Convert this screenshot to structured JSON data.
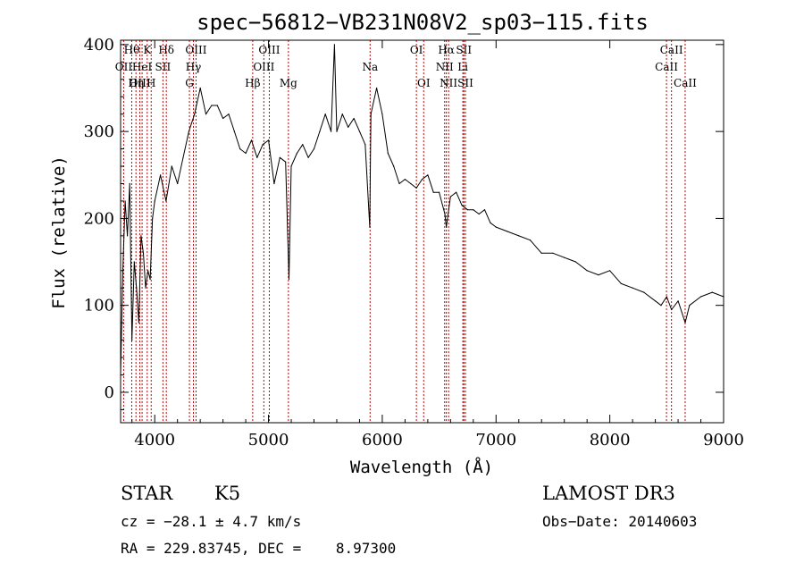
{
  "chart_data": {
    "type": "line",
    "title": "spec−56812−VB231N08V2_sp03−115.fits",
    "xlabel": "Wavelength (Å)",
    "ylabel": "Flux (relative)",
    "xlim": [
      3700,
      9000
    ],
    "ylim": [
      -35,
      405
    ],
    "xticks": [
      4000,
      5000,
      6000,
      7000,
      8000,
      9000
    ],
    "yticks": [
      0,
      100,
      200,
      300,
      400
    ],
    "series": [
      {
        "name": "flux",
        "x": [
          3700,
          3720,
          3740,
          3760,
          3780,
          3800,
          3820,
          3840,
          3860,
          3880,
          3900,
          3920,
          3940,
          3960,
          3980,
          4000,
          4050,
          4100,
          4150,
          4200,
          4250,
          4300,
          4350,
          4400,
          4450,
          4500,
          4550,
          4600,
          4650,
          4700,
          4750,
          4800,
          4850,
          4900,
          4950,
          5000,
          5050,
          5100,
          5150,
          5180,
          5200,
          5250,
          5300,
          5350,
          5400,
          5450,
          5500,
          5550,
          5580,
          5600,
          5650,
          5700,
          5750,
          5800,
          5850,
          5890,
          5900,
          5950,
          6000,
          6050,
          6100,
          6150,
          6200,
          6250,
          6300,
          6350,
          6400,
          6450,
          6500,
          6550,
          6563,
          6600,
          6650,
          6700,
          6750,
          6800,
          6850,
          6900,
          6950,
          7000,
          7100,
          7200,
          7300,
          7400,
          7500,
          7600,
          7700,
          7800,
          7900,
          8000,
          8100,
          8200,
          8300,
          8400,
          8450,
          8500,
          8542,
          8600,
          8662,
          8700,
          8800,
          8900,
          9000
        ],
        "values": [
          20,
          140,
          220,
          180,
          240,
          60,
          150,
          120,
          80,
          180,
          160,
          120,
          140,
          130,
          200,
          220,
          250,
          220,
          260,
          240,
          270,
          300,
          320,
          350,
          320,
          330,
          330,
          315,
          320,
          300,
          280,
          275,
          290,
          270,
          285,
          290,
          240,
          270,
          265,
          130,
          260,
          275,
          285,
          270,
          280,
          300,
          320,
          300,
          400,
          300,
          320,
          305,
          315,
          300,
          285,
          190,
          320,
          350,
          320,
          275,
          260,
          240,
          245,
          240,
          235,
          245,
          250,
          230,
          230,
          205,
          190,
          225,
          230,
          215,
          210,
          210,
          205,
          210,
          195,
          190,
          185,
          180,
          175,
          160,
          160,
          155,
          150,
          140,
          135,
          140,
          125,
          120,
          115,
          105,
          100,
          110,
          95,
          105,
          80,
          100,
          110,
          115,
          110
        ]
      }
    ],
    "lines": [
      {
        "label": "Hθ",
        "x": 3798,
        "row": 0
      },
      {
        "label": "OII",
        "x": 3727,
        "row": 1
      },
      {
        "label": "OIII",
        "x": 3869,
        "row": 2
      },
      {
        "label": "K",
        "x": 3934,
        "row": 0
      },
      {
        "label": "HeI",
        "x": 3889,
        "row": 1
      },
      {
        "label": "Hη",
        "x": 3835,
        "row": 2
      },
      {
        "label": "Hδ",
        "x": 4102,
        "row": 0
      },
      {
        "label": "SII",
        "x": 4072,
        "row": 1
      },
      {
        "label": "H",
        "x": 3969,
        "row": 2
      },
      {
        "label": "OIII",
        "x": 4363,
        "row": 0
      },
      {
        "label": "Hγ",
        "x": 4340,
        "row": 1
      },
      {
        "label": "G",
        "x": 4305,
        "row": 2
      },
      {
        "label": "OIII",
        "x": 5007,
        "row": 0
      },
      {
        "label": "OIII",
        "x": 4959,
        "row": 1
      },
      {
        "label": "Hβ",
        "x": 4861,
        "row": 2
      },
      {
        "label": "Mg",
        "x": 5175,
        "row": 2
      },
      {
        "label": "Na",
        "x": 5893,
        "row": 1
      },
      {
        "label": "OI",
        "x": 6300,
        "row": 0
      },
      {
        "label": "OI",
        "x": 6364,
        "row": 2
      },
      {
        "label": "Hα",
        "x": 6563,
        "row": 0
      },
      {
        "label": "NII",
        "x": 6548,
        "row": 1
      },
      {
        "label": "NII",
        "x": 6583,
        "row": 2
      },
      {
        "label": "SII",
        "x": 6717,
        "row": 0
      },
      {
        "label": "Li",
        "x": 6708,
        "row": 1
      },
      {
        "label": "SII",
        "x": 6731,
        "row": 2
      },
      {
        "label": "CaII",
        "x": 8542,
        "row": 0
      },
      {
        "label": "CaII",
        "x": 8498,
        "row": 1
      },
      {
        "label": "CaII",
        "x": 8662,
        "row": 2
      }
    ]
  },
  "info": {
    "object_class": "STAR",
    "subclass": "K5",
    "survey": "LAMOST DR3",
    "cz": "cz = −28.1 ± 4.7 km/s",
    "obs_date": "Obs−Date: 20140603",
    "coords": "RA = 229.83745, DEC =    8.97300"
  },
  "colors": {
    "axis": "#000000",
    "line_markers": "#cc0000"
  }
}
